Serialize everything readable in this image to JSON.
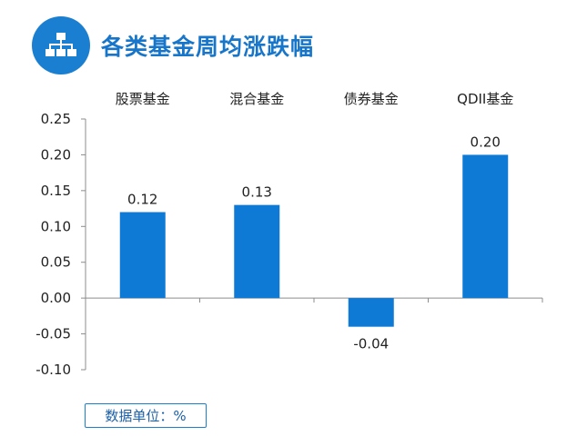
{
  "header": {
    "title": "各类基金周均涨跌幅",
    "icon": "org-chart-icon"
  },
  "colors": {
    "accent": "#1a7fd1",
    "bar": "#0f7ad6",
    "axis": "#8c8c8c"
  },
  "unit_note": "数据单位：%",
  "chart_data": {
    "type": "bar",
    "categories": [
      "股票基金",
      "混合基金",
      "债券基金",
      "QDII基金"
    ],
    "values": [
      0.12,
      0.13,
      -0.04,
      0.2
    ],
    "value_labels": [
      "0.12",
      "0.13",
      "-0.04",
      "0.20"
    ],
    "ylim": [
      -0.1,
      0.25
    ],
    "yticks": [
      "0.25",
      "0.20",
      "0.15",
      "0.10",
      "0.05",
      "0.00",
      "-0.05",
      "-0.10"
    ],
    "ytick_values": [
      0.25,
      0.2,
      0.15,
      0.1,
      0.05,
      0.0,
      -0.05,
      -0.1
    ],
    "category_labels_position": "top",
    "grid": false,
    "legend": "none"
  }
}
